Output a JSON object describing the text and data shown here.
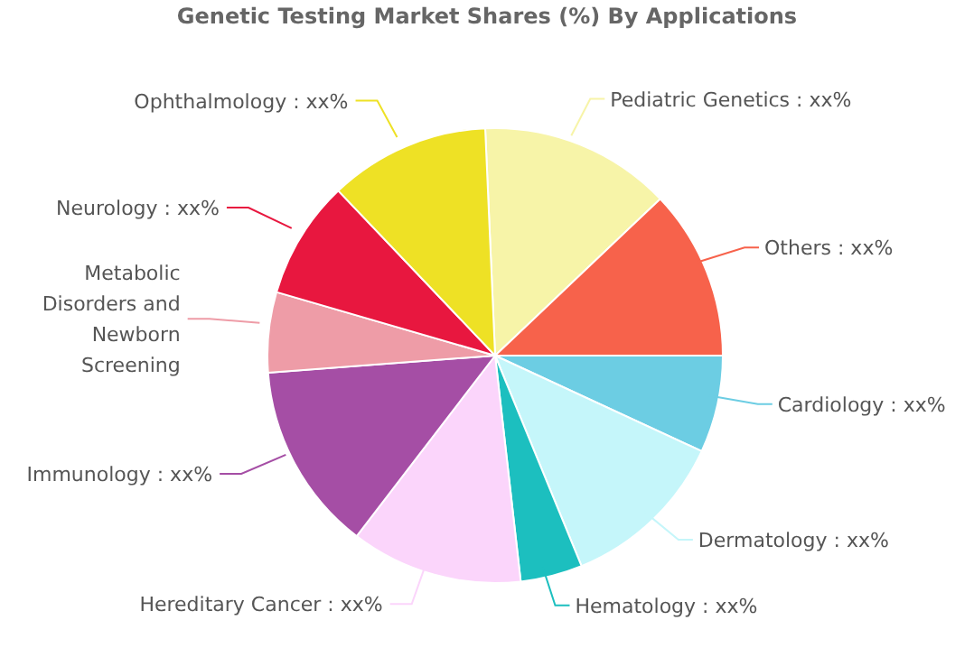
{
  "chart_data": {
    "type": "pie",
    "title": "Genetic Testing Market Shares (%) By Applications",
    "categories": [
      "Pediatric Genetics",
      "Others",
      "Cardiology",
      "Dermatology",
      "Hematology",
      "Hereditary Cancer",
      "Immunology",
      "Metabolic Disorders and Newborn Screening",
      "Neurology",
      "Ophthalmology"
    ],
    "values": [
      13.6,
      12.1,
      6.9,
      11.9,
      4.4,
      12.2,
      13.4,
      5.7,
      8.4,
      11.4
    ],
    "colors": [
      "#f7f4a8",
      "#f7624b",
      "#6ccde3",
      "#c5f6fa",
      "#1cbfbf",
      "#fbd5fb",
      "#a54ea5",
      "#ee9ca7",
      "#e8173f",
      "#eee125"
    ],
    "value_labels": [
      "xx%",
      "xx%",
      "xx%",
      "xx%",
      "xx%",
      "xx%",
      "xx%",
      null,
      "xx%",
      "xx%"
    ]
  }
}
